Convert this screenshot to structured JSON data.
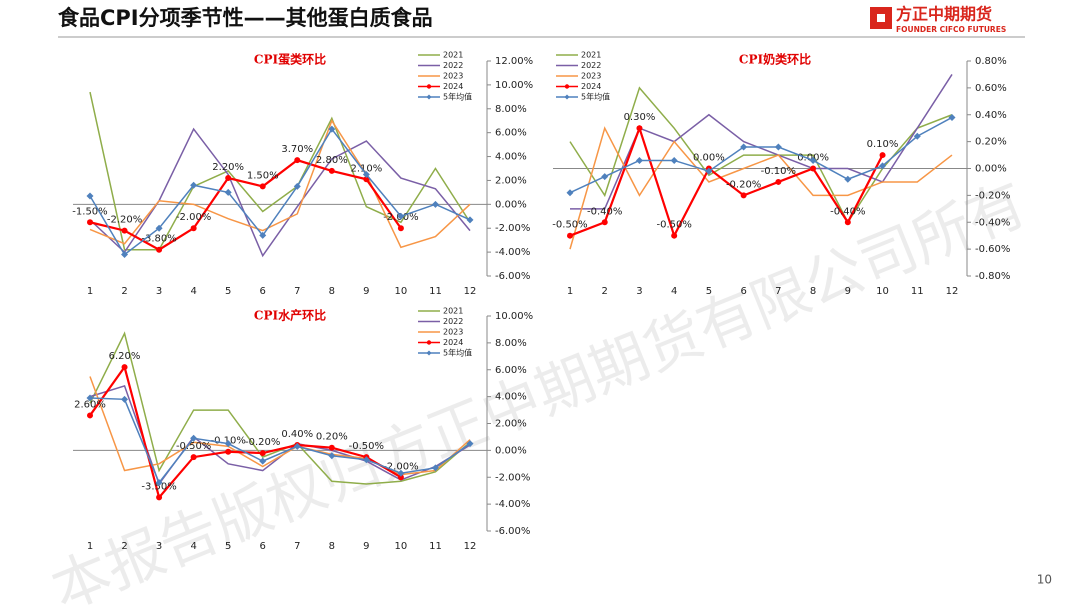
{
  "header": {
    "title": "食品CPI分项季节性——其他蛋白质食品",
    "logo_cn": "方正中期期货",
    "logo_en": "FOUNDER CIFCO FUTURES"
  },
  "page_number": "10",
  "watermark": "本报告版权归方正中期期货有限公司所有",
  "chart_data": [
    {
      "type": "line",
      "title": "CPI蛋类环比",
      "categories": [
        "1",
        "2",
        "3",
        "4",
        "5",
        "6",
        "7",
        "8",
        "9",
        "10",
        "11",
        "12"
      ],
      "ylim": [
        -6,
        12
      ],
      "yticks": [
        {
          "value": -6,
          "label": "-6.00%"
        },
        {
          "value": -4,
          "label": "-4.00%"
        },
        {
          "value": -2,
          "label": "-2.00%"
        },
        {
          "value": 0,
          "label": "0.00%"
        },
        {
          "value": 2,
          "label": "2.00%"
        },
        {
          "value": 4,
          "label": "4.00%"
        },
        {
          "value": 6,
          "label": "6.00%"
        },
        {
          "value": 8,
          "label": "8.00%"
        },
        {
          "value": 10,
          "label": "10.00%"
        },
        {
          "value": 12,
          "label": "12.00%"
        }
      ],
      "series": [
        {
          "name": "2021",
          "color": "#8fad4a",
          "values": [
            9.4,
            -3.8,
            -3.8,
            1.5,
            2.8,
            -0.6,
            1.5,
            7.2,
            -0.2,
            -1.5,
            3.0,
            -1.5
          ]
        },
        {
          "name": "2022",
          "color": "#7a5fa6",
          "values": [
            -1.3,
            -4.0,
            0.3,
            6.3,
            2.5,
            -4.3,
            -0.2,
            3.8,
            5.3,
            2.2,
            1.3,
            -2.2
          ]
        },
        {
          "name": "2023",
          "color": "#f79646",
          "values": [
            -2.1,
            -3.3,
            0.3,
            0.0,
            -1.2,
            -2.2,
            -0.8,
            7.0,
            2.5,
            -3.6,
            -2.7,
            0.0
          ]
        },
        {
          "name": "2024",
          "color": "#ff0000",
          "values": [
            -1.5,
            -2.2,
            -3.8,
            -2.0,
            2.2,
            1.5,
            3.7,
            2.8,
            2.1,
            -2.0,
            null,
            null
          ],
          "value_labels": [
            "-1.50%",
            "-2.20%",
            "-3.80%",
            "-2.00%",
            "2.20%",
            "1.50%",
            "3.70%",
            "2.80%",
            "2.10%",
            "-2.00%",
            null,
            null
          ]
        },
        {
          "name": "5年均值",
          "color": "#4f81bd",
          "values": [
            0.7,
            -4.2,
            -2.0,
            1.6,
            1.0,
            -2.6,
            1.5,
            6.3,
            2.5,
            -1.0,
            0.0,
            -1.3
          ]
        }
      ]
    },
    {
      "type": "line",
      "title": "CPI奶类环比",
      "categories": [
        "1",
        "2",
        "3",
        "4",
        "5",
        "6",
        "7",
        "8",
        "9",
        "10",
        "11",
        "12"
      ],
      "ylim": [
        -0.8,
        0.8
      ],
      "yticks": [
        {
          "value": -0.8,
          "label": "-0.80%"
        },
        {
          "value": -0.6,
          "label": "-0.60%"
        },
        {
          "value": -0.4,
          "label": "-0.40%"
        },
        {
          "value": -0.2,
          "label": "-0.20%"
        },
        {
          "value": 0,
          "label": "0.00%"
        },
        {
          "value": 0.2,
          "label": "0.20%"
        },
        {
          "value": 0.4,
          "label": "0.40%"
        },
        {
          "value": 0.6,
          "label": "0.60%"
        },
        {
          "value": 0.8,
          "label": "0.80%"
        }
      ],
      "series": [
        {
          "name": "2021",
          "color": "#8fad4a",
          "values": [
            0.2,
            -0.2,
            0.6,
            0.3,
            -0.05,
            0.1,
            0.1,
            0.1,
            -0.4,
            0.0,
            0.3,
            0.4
          ]
        },
        {
          "name": "2022",
          "color": "#7a5fa6",
          "values": [
            -0.3,
            -0.3,
            0.3,
            0.2,
            0.4,
            0.2,
            0.1,
            0.0,
            0.0,
            -0.1,
            0.3,
            0.7
          ]
        },
        {
          "name": "2023",
          "color": "#f79646",
          "values": [
            -0.6,
            0.3,
            -0.2,
            0.2,
            -0.1,
            0.0,
            0.1,
            -0.2,
            -0.2,
            -0.1,
            -0.1,
            0.1
          ]
        },
        {
          "name": "2024",
          "color": "#ff0000",
          "values": [
            -0.5,
            -0.4,
            0.3,
            -0.5,
            0.0,
            -0.2,
            -0.1,
            0.0,
            -0.4,
            0.1,
            null,
            null
          ],
          "value_labels": [
            "-0.50%",
            "-0.40%",
            "0.30%",
            "-0.50%",
            "0.00%",
            "-0.20%",
            "-0.10%",
            "0.00%",
            "-0.40%",
            "0.10%",
            null,
            null
          ]
        },
        {
          "name": "5年均值",
          "color": "#4f81bd",
          "values": [
            -0.18,
            -0.06,
            0.06,
            0.06,
            -0.02,
            0.16,
            0.16,
            0.06,
            -0.08,
            0.02,
            0.24,
            0.38
          ]
        }
      ]
    },
    {
      "type": "line",
      "title": "CPI水产环比",
      "categories": [
        "1",
        "2",
        "3",
        "4",
        "5",
        "6",
        "7",
        "8",
        "9",
        "10",
        "11",
        "12"
      ],
      "ylim": [
        -6,
        10
      ],
      "yticks": [
        {
          "value": -6,
          "label": "-6.00%"
        },
        {
          "value": -4,
          "label": "-4.00%"
        },
        {
          "value": -2,
          "label": "-2.00%"
        },
        {
          "value": 0,
          "label": "0.00%"
        },
        {
          "value": 2,
          "label": "2.00%"
        },
        {
          "value": 4,
          "label": "4.00%"
        },
        {
          "value": 6,
          "label": "6.00%"
        },
        {
          "value": 8,
          "label": "8.00%"
        },
        {
          "value": 10,
          "label": "10.00%"
        }
      ],
      "series": [
        {
          "name": "2021",
          "color": "#8fad4a",
          "values": [
            3.5,
            8.7,
            -1.5,
            3.0,
            3.0,
            -0.5,
            0.5,
            -2.3,
            -2.5,
            -2.3,
            -1.6,
            0.6
          ]
        },
        {
          "name": "2022",
          "color": "#7a5fa6",
          "values": [
            4.0,
            4.8,
            -2.5,
            1.0,
            -1.0,
            -1.5,
            0.5,
            0.0,
            -0.8,
            -2.2,
            -1.2,
            0.4
          ]
        },
        {
          "name": "2023",
          "color": "#f79646",
          "values": [
            5.5,
            -1.5,
            -1.0,
            0.6,
            0.3,
            -1.2,
            0.3,
            -0.3,
            -0.6,
            -1.8,
            -1.5,
            0.8
          ]
        },
        {
          "name": "2024",
          "color": "#ff0000",
          "values": [
            2.6,
            6.2,
            -3.5,
            -0.5,
            -0.1,
            -0.2,
            0.4,
            0.2,
            -0.5,
            -2.0,
            null,
            null
          ],
          "value_labels": [
            "2.60%",
            "6.20%",
            "-3.50%",
            "-0.50%",
            "-0.10%",
            "-0.20%",
            "0.40%",
            "0.20%",
            "-0.50%",
            "-2.00%",
            null,
            null
          ]
        },
        {
          "name": "5年均值",
          "color": "#4f81bd",
          "values": [
            3.9,
            3.8,
            -2.4,
            0.9,
            0.5,
            -0.8,
            0.3,
            -0.4,
            -0.7,
            -1.7,
            -1.3,
            0.5
          ]
        }
      ]
    }
  ]
}
